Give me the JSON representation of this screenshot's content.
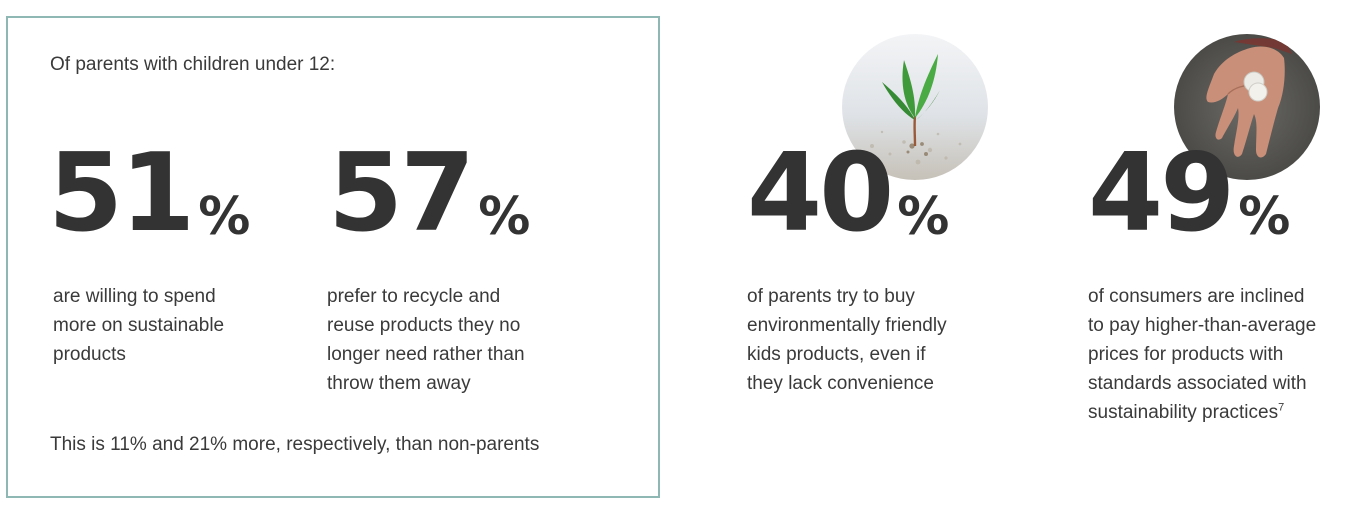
{
  "parents_box": {
    "intro": "Of parents with children under 12:",
    "stats": [
      {
        "value": "51",
        "unit": "%",
        "lines": [
          "are willing to spend",
          "more on sustainable",
          "products"
        ]
      },
      {
        "value": "57",
        "unit": "%",
        "lines": [
          "prefer to recycle and",
          "reuse products they no",
          "longer need rather than",
          "throw them away"
        ]
      }
    ],
    "summary": "This is 11% and 21% more, respectively, than non-parents"
  },
  "side_stats": [
    {
      "value": "40",
      "unit": "%",
      "photo": "seedling-sprout-photo",
      "lines": [
        "of parents try to buy",
        "environmentally friendly",
        "kids products, even if",
        "they lack convenience"
      ]
    },
    {
      "value": "49",
      "unit": "%",
      "photo": "hand-holding-coins-photo",
      "lines": [
        "of consumers are inclined",
        "to pay higher-than-average",
        "prices for products with",
        "standards associated with",
        "sustainability practices"
      ],
      "footnote": "7"
    }
  ],
  "colors": {
    "box_border": "#8fb7b3",
    "number": "#333333",
    "text": "#3a3a3a",
    "leaf_green": "#3f9a3a"
  }
}
